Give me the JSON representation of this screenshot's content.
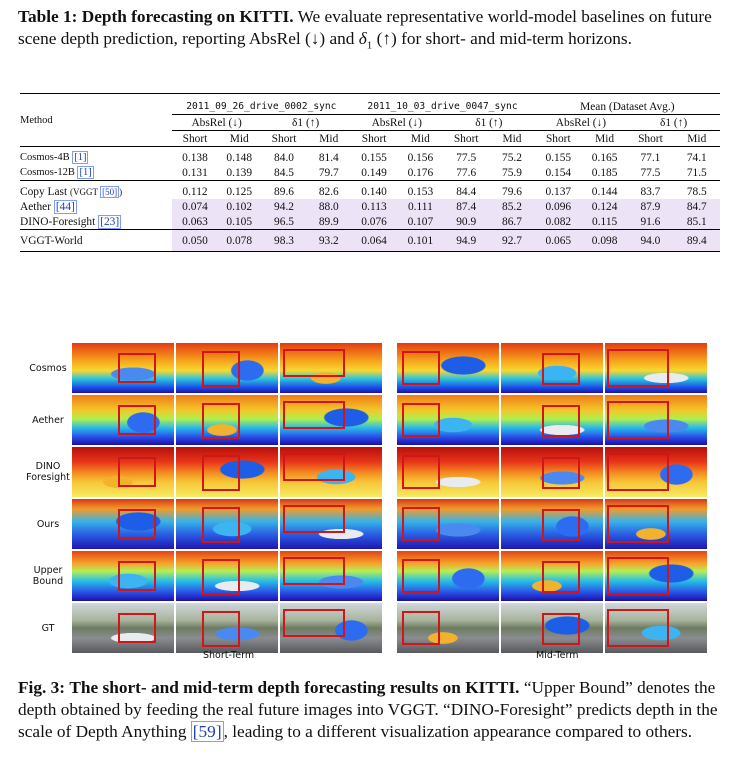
{
  "table_caption": {
    "label": "Table 1:",
    "title": "Depth forecasting on KITTI.",
    "text_1": "We evaluate representative world-model baselines on future scene depth prediction, reporting AbsRel (↓) and ",
    "delta_symbol": "δ",
    "delta_sub": "1",
    "text_2": " (↑) for short- and mid-term horizons."
  },
  "table": {
    "method_header": "Method",
    "groups": [
      "2011_09_26_drive_0002_sync",
      "2011_10_03_drive_0047_sync",
      "Mean (Dataset Avg.)"
    ],
    "metrics": [
      "AbsRel (↓)",
      "δ1 (↑)"
    ],
    "horizons": [
      "Short",
      "Mid"
    ],
    "rows": [
      {
        "name": "Cosmos-4B",
        "cite": "[1]",
        "values": [
          "0.138",
          "0.148",
          "84.0",
          "81.4",
          "0.155",
          "0.156",
          "77.5",
          "75.2",
          "0.155",
          "0.165",
          "77.1",
          "74.1"
        ]
      },
      {
        "name": "Cosmos-12B",
        "cite": "[1]",
        "values": [
          "0.131",
          "0.139",
          "84.5",
          "79.7",
          "0.149",
          "0.176",
          "77.6",
          "75.9",
          "0.154",
          "0.185",
          "77.5",
          "71.5"
        ]
      },
      {
        "name": "Copy Last",
        "sub": "(VGGT ",
        "cite": "[50]",
        "sub_end": ")",
        "values": [
          "0.112",
          "0.125",
          "89.6",
          "82.6",
          "0.140",
          "0.153",
          "84.4",
          "79.6",
          "0.137",
          "0.144",
          "83.7",
          "78.5"
        ]
      },
      {
        "name": "Aether",
        "cite": "[44]",
        "values": [
          "0.074",
          "0.102",
          "94.2",
          "88.0",
          "0.113",
          "0.111",
          "87.4",
          "85.2",
          "0.096",
          "0.124",
          "87.9",
          "84.7"
        ]
      },
      {
        "name": "DINO-Foresight",
        "cite": "[23]",
        "values": [
          "0.063",
          "0.105",
          "96.5",
          "89.9",
          "0.076",
          "0.107",
          "90.9",
          "86.7",
          "0.082",
          "0.115",
          "91.6",
          "85.1"
        ]
      },
      {
        "name": "VGGT-World",
        "values": [
          "0.050",
          "0.078",
          "98.3",
          "93.2",
          "0.064",
          "0.101",
          "94.9",
          "92.7",
          "0.065",
          "0.098",
          "94.0",
          "89.4"
        ]
      }
    ]
  },
  "figure": {
    "row_labels": [
      "Cosmos",
      "Aether",
      "DINO\nForesight",
      "Ours",
      "Upper\nBound",
      "GT"
    ],
    "short_label": "Short-Term",
    "mid_label": "Mid-Term"
  },
  "fig_caption": {
    "label": "Fig. 3:",
    "title": "The short- and mid-term depth forecasting results on KITTI.",
    "text_1": " “Upper Bound” denotes the depth obtained by feeding the real future images into VGGT. “DINO-Foresight” predicts depth in the scale of Depth Anything ",
    "cite": "[59]",
    "text_2": ", leading to a different visualization appearance compared to others."
  }
}
